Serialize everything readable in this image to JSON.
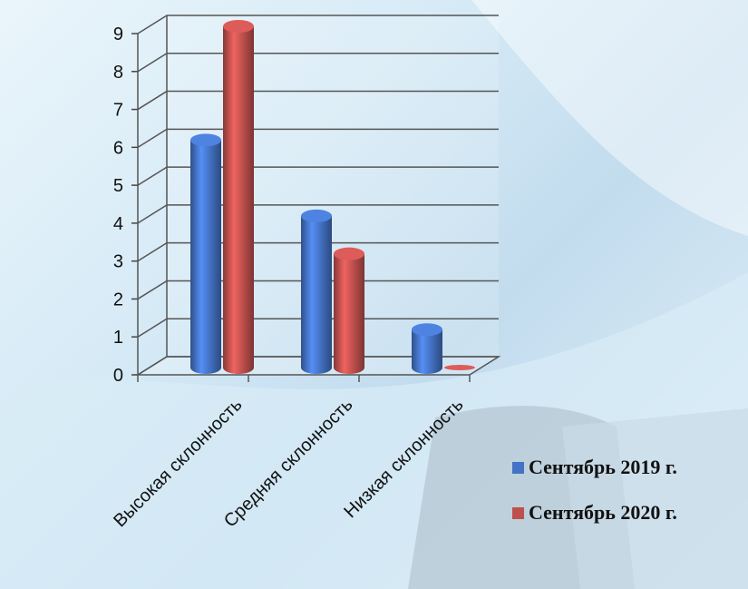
{
  "chart_data": {
    "type": "bar",
    "categories": [
      "Высокая склонность",
      "Средняя склонность",
      "Низкая склонность"
    ],
    "series": [
      {
        "name": "Сентябрь 2019 г.",
        "values": [
          6,
          4,
          1
        ],
        "color": "#4472c4"
      },
      {
        "name": "Сентябрь 2020 г.",
        "values": [
          9,
          3,
          0
        ],
        "color": "#c0504d"
      }
    ],
    "ylim": [
      0,
      9
    ],
    "yticks": [
      "0",
      "1",
      "2",
      "3",
      "4",
      "5",
      "6",
      "7",
      "8",
      "9"
    ],
    "grid": true,
    "legend_position": "bottom-right"
  }
}
